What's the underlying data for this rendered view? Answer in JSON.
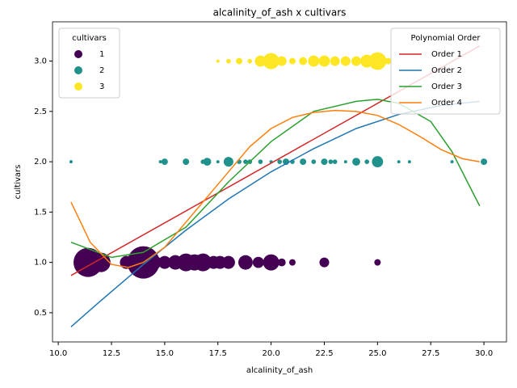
{
  "chart_data": {
    "type": "scatter",
    "title": "alcalinity_of_ash x cultivars",
    "x_label": "alcalinity_of_ash",
    "y_label": "cultivars",
    "xlim": [
      9.73,
      31.06
    ],
    "ylim": [
      0.21,
      3.39
    ],
    "xticks": [
      {
        "value": 10,
        "label": "10.0"
      },
      12.5,
      {
        "value": 15,
        "label": "15.0"
      },
      17.5,
      {
        "value": 20,
        "label": "20.0"
      },
      22.5,
      {
        "value": 25,
        "label": "25.0"
      },
      27.5,
      {
        "value": 30,
        "label": "30.0"
      }
    ],
    "yticks": [
      0.5,
      {
        "value": 1,
        "label": "1.0"
      },
      1.5,
      {
        "value": 2,
        "label": "2.0"
      },
      2.5,
      {
        "value": 3,
        "label": "3.0"
      }
    ],
    "legend_title": "cultivars",
    "legend2_title": "Polynomial Order",
    "legend_corner": "upper left",
    "legend2_corner": "upper right",
    "series": [
      {
        "name": "1",
        "type": "scatter",
        "color": "#440154",
        "x": [
          11.4,
          12.0,
          13.2,
          14.0,
          14.5,
          15.0,
          15.5,
          16.0,
          16.4,
          16.8,
          17.3,
          17.6,
          18.0,
          18.8,
          19.4,
          20.0,
          20.5,
          21.0,
          22.5,
          25.0
        ],
        "values": [
          1,
          1,
          1,
          1,
          1,
          1,
          1,
          1,
          1,
          1,
          1,
          1,
          1,
          1,
          1,
          1,
          1,
          1,
          1,
          1
        ],
        "sizes": [
          81,
          36,
          16,
          100,
          20,
          16,
          20,
          30,
          25,
          30,
          16,
          16,
          16,
          20,
          12,
          25,
          6,
          4,
          9,
          4
        ]
      },
      {
        "name": "2",
        "type": "scatter",
        "color": "#21918c",
        "x": [
          10.6,
          14.8,
          15.0,
          16.0,
          16.8,
          17.0,
          17.5,
          18.0,
          18.5,
          18.8,
          19.0,
          19.5,
          20.0,
          20.4,
          20.7,
          21.0,
          21.5,
          22.0,
          22.5,
          22.8,
          23.0,
          23.5,
          24.0,
          24.5,
          25.0,
          26.0,
          26.5,
          28.5,
          30.0
        ],
        "values": [
          2,
          2,
          2,
          2,
          2,
          2,
          2,
          2,
          2,
          2,
          2,
          2,
          2,
          2,
          2,
          2,
          2,
          2,
          2,
          2,
          2,
          2,
          2,
          2,
          2,
          2,
          2,
          2,
          2
        ],
        "sizes": [
          1,
          1,
          4,
          4,
          2,
          6,
          1,
          9,
          2,
          2,
          2,
          2,
          1,
          2,
          4,
          2,
          4,
          2,
          4,
          2,
          2,
          1,
          6,
          2,
          12,
          1,
          1,
          1,
          4
        ]
      },
      {
        "name": "3",
        "type": "scatter",
        "color": "#fde725",
        "x": [
          17.5,
          18.0,
          18.5,
          19.0,
          19.5,
          20.0,
          20.5,
          21.0,
          21.5,
          22.0,
          22.5,
          23.0,
          23.5,
          24.0,
          24.5,
          25.0,
          25.5
        ],
        "values": [
          3,
          3,
          3,
          3,
          3,
          3,
          3,
          3,
          3,
          3,
          3,
          3,
          3,
          3,
          3,
          3,
          3
        ],
        "sizes": [
          1,
          2,
          4,
          2,
          12,
          25,
          9,
          4,
          6,
          12,
          12,
          9,
          9,
          9,
          16,
          30,
          4
        ]
      },
      {
        "name": "Order 1",
        "type": "line",
        "color": "#d62728",
        "x": [
          10.6,
          29.8
        ],
        "values": [
          0.87,
          3.15
        ]
      },
      {
        "name": "Order 2",
        "type": "line",
        "color": "#1f77b4",
        "x": [
          10.6,
          12,
          14,
          16,
          18,
          20,
          22,
          24,
          26,
          28,
          29.8
        ],
        "values": [
          0.36,
          0.62,
          0.98,
          1.32,
          1.63,
          1.9,
          2.13,
          2.33,
          2.47,
          2.56,
          2.6
        ]
      },
      {
        "name": "Order 3",
        "type": "line",
        "color": "#2ca02c",
        "x": [
          10.6,
          12.5,
          14,
          16,
          18,
          20,
          22,
          24,
          25,
          26,
          27.5,
          28.5,
          29.8
        ],
        "values": [
          1.2,
          1.05,
          1.1,
          1.35,
          1.8,
          2.2,
          2.5,
          2.6,
          2.62,
          2.58,
          2.4,
          2.1,
          1.56
        ]
      },
      {
        "name": "Order 4",
        "type": "line",
        "color": "#ff7f0e",
        "x": [
          10.6,
          11.5,
          12.5,
          13.3,
          14,
          15,
          16,
          17,
          18,
          19,
          20,
          21,
          22,
          23,
          24,
          25,
          26,
          27,
          28,
          29,
          29.8
        ],
        "values": [
          1.6,
          1.2,
          0.98,
          0.95,
          1.0,
          1.15,
          1.4,
          1.65,
          1.9,
          2.15,
          2.33,
          2.44,
          2.49,
          2.51,
          2.5,
          2.46,
          2.37,
          2.25,
          2.12,
          2.03,
          2.0
        ]
      }
    ]
  }
}
